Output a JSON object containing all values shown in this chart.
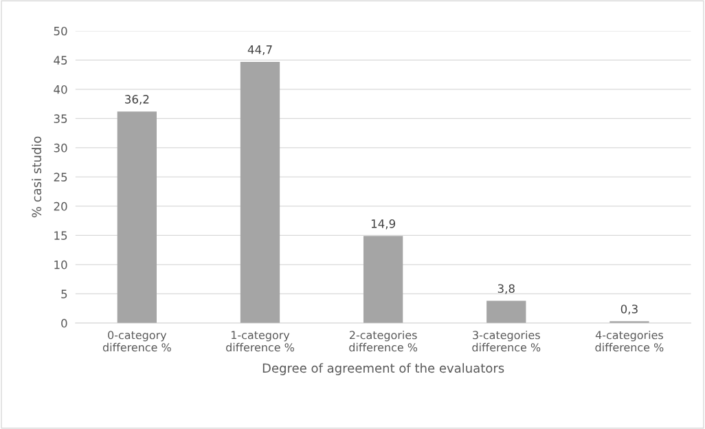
{
  "chart_data": {
    "type": "bar",
    "xlabel": "Degree of agreement of the evaluators",
    "ylabel": "% casi studio",
    "categories": [
      "0-category\ndifference %",
      "1-category\ndifference %",
      "2-categories\ndifference %",
      "3-categories\ndifference %",
      "4-categories\ndifference %"
    ],
    "values": [
      36.2,
      44.7,
      14.9,
      3.8,
      0.3
    ],
    "value_labels": [
      "36,2",
      "44,7",
      "14,9",
      "3,8",
      "0,3"
    ],
    "color": "#a5a5a5",
    "ylim": [
      0,
      50
    ],
    "yticks": [
      0,
      5,
      10,
      15,
      20,
      25,
      30,
      35,
      40,
      45,
      50
    ],
    "grid": "y"
  }
}
